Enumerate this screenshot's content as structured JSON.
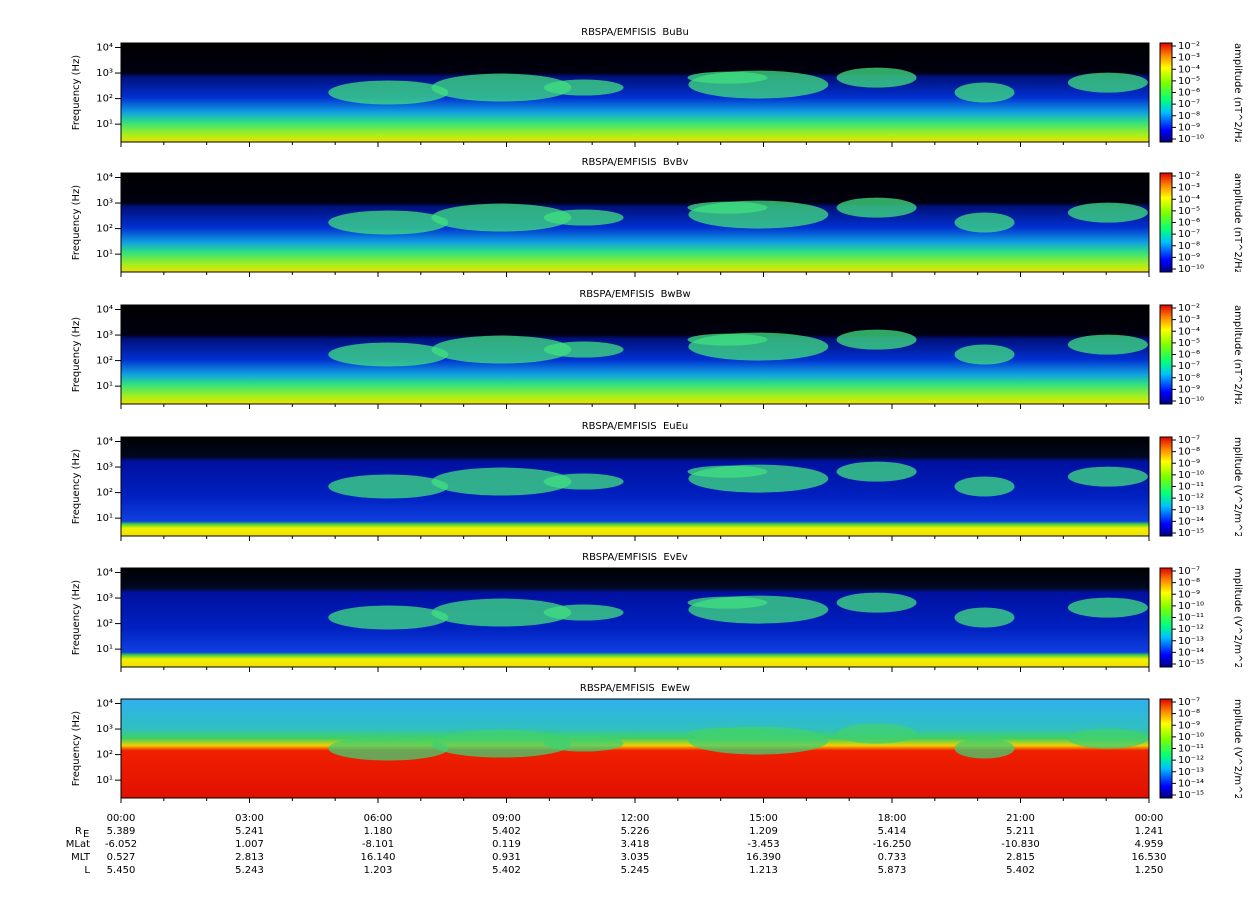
{
  "chart_data": [
    {
      "type": "spectrogram",
      "title": "RBSPA/EMFISIS  BuBu",
      "ylabel": "Frequency (Hz)",
      "log_y": true,
      "ylim": [
        2,
        15000
      ],
      "yticks": [
        {
          "value": 10,
          "label": "10¹"
        },
        {
          "value": 100,
          "label": "10²"
        },
        {
          "value": 1000,
          "label": "10³"
        },
        {
          "value": 10000,
          "label": "10⁴"
        }
      ],
      "clim": [
        1e-10,
        0.01
      ],
      "cticks": [
        {
          "value": 1e-10,
          "label": "10⁻¹⁰"
        },
        {
          "value": 1e-09,
          "label": "10⁻⁹"
        },
        {
          "value": 1e-08,
          "label": "10⁻⁸"
        },
        {
          "value": 1e-07,
          "label": "10⁻⁷"
        },
        {
          "value": 1e-06,
          "label": "10⁻⁶"
        },
        {
          "value": 1e-05,
          "label": "10⁻⁵"
        },
        {
          "value": 0.0001,
          "label": "10⁻⁴"
        },
        {
          "value": 0.001,
          "label": "10⁻³"
        },
        {
          "value": 0.01,
          "label": "10⁻²"
        }
      ],
      "colorbar_label": "amplitude (nT^2/Hz)"
    },
    {
      "type": "spectrogram",
      "title": "RBSPA/EMFISIS  BvBv",
      "ylabel": "Frequency (Hz)",
      "log_y": true,
      "ylim": [
        2,
        15000
      ],
      "yticks": [
        {
          "value": 10,
          "label": "10¹"
        },
        {
          "value": 100,
          "label": "10²"
        },
        {
          "value": 1000,
          "label": "10³"
        },
        {
          "value": 10000,
          "label": "10⁴"
        }
      ],
      "clim": [
        1e-10,
        0.01
      ],
      "cticks": [
        {
          "value": 1e-10,
          "label": "10⁻¹⁰"
        },
        {
          "value": 1e-09,
          "label": "10⁻⁹"
        },
        {
          "value": 1e-08,
          "label": "10⁻⁸"
        },
        {
          "value": 1e-07,
          "label": "10⁻⁷"
        },
        {
          "value": 1e-06,
          "label": "10⁻⁶"
        },
        {
          "value": 1e-05,
          "label": "10⁻⁵"
        },
        {
          "value": 0.0001,
          "label": "10⁻⁴"
        },
        {
          "value": 0.001,
          "label": "10⁻³"
        },
        {
          "value": 0.01,
          "label": "10⁻²"
        }
      ],
      "colorbar_label": "amplitude (nT^2/Hz)"
    },
    {
      "type": "spectrogram",
      "title": "RBSPA/EMFISIS  BwBw",
      "ylabel": "Frequency (Hz)",
      "log_y": true,
      "ylim": [
        2,
        15000
      ],
      "yticks": [
        {
          "value": 10,
          "label": "10¹"
        },
        {
          "value": 100,
          "label": "10²"
        },
        {
          "value": 1000,
          "label": "10³"
        },
        {
          "value": 10000,
          "label": "10⁴"
        }
      ],
      "clim": [
        1e-10,
        0.01
      ],
      "cticks": [
        {
          "value": 1e-10,
          "label": "10⁻¹⁰"
        },
        {
          "value": 1e-09,
          "label": "10⁻⁹"
        },
        {
          "value": 1e-08,
          "label": "10⁻⁸"
        },
        {
          "value": 1e-07,
          "label": "10⁻⁷"
        },
        {
          "value": 1e-06,
          "label": "10⁻⁶"
        },
        {
          "value": 1e-05,
          "label": "10⁻⁵"
        },
        {
          "value": 0.0001,
          "label": "10⁻⁴"
        },
        {
          "value": 0.001,
          "label": "10⁻³"
        },
        {
          "value": 0.01,
          "label": "10⁻²"
        }
      ],
      "colorbar_label": "amplitude (nT^2/Hz)"
    },
    {
      "type": "spectrogram",
      "title": "RBSPA/EMFISIS  EuEu",
      "ylabel": "Frequency (Hz)",
      "log_y": true,
      "ylim": [
        2,
        15000
      ],
      "yticks": [
        {
          "value": 10,
          "label": "10¹"
        },
        {
          "value": 100,
          "label": "10²"
        },
        {
          "value": 1000,
          "label": "10³"
        },
        {
          "value": 10000,
          "label": "10⁴"
        }
      ],
      "clim": [
        1e-15,
        1e-07
      ],
      "cticks": [
        {
          "value": 1e-15,
          "label": "10⁻¹⁵"
        },
        {
          "value": 1e-14,
          "label": "10⁻¹⁴"
        },
        {
          "value": 1e-13,
          "label": "10⁻¹³"
        },
        {
          "value": 1e-12,
          "label": "10⁻¹²"
        },
        {
          "value": 1e-11,
          "label": "10⁻¹¹"
        },
        {
          "value": 1e-10,
          "label": "10⁻¹⁰"
        },
        {
          "value": 1e-09,
          "label": "10⁻⁹"
        },
        {
          "value": 1e-08,
          "label": "10⁻⁸"
        },
        {
          "value": 1e-07,
          "label": "10⁻⁷"
        }
      ],
      "colorbar_label": "mplitude (V^2/m^2/Hz"
    },
    {
      "type": "spectrogram",
      "title": "RBSPA/EMFISIS  EvEv",
      "ylabel": "Frequency (Hz)",
      "log_y": true,
      "ylim": [
        2,
        15000
      ],
      "yticks": [
        {
          "value": 10,
          "label": "10¹"
        },
        {
          "value": 100,
          "label": "10²"
        },
        {
          "value": 1000,
          "label": "10³"
        },
        {
          "value": 10000,
          "label": "10⁴"
        }
      ],
      "clim": [
        1e-15,
        1e-07
      ],
      "cticks": [
        {
          "value": 1e-15,
          "label": "10⁻¹⁵"
        },
        {
          "value": 1e-14,
          "label": "10⁻¹⁴"
        },
        {
          "value": 1e-13,
          "label": "10⁻¹³"
        },
        {
          "value": 1e-12,
          "label": "10⁻¹²"
        },
        {
          "value": 1e-11,
          "label": "10⁻¹¹"
        },
        {
          "value": 1e-10,
          "label": "10⁻¹⁰"
        },
        {
          "value": 1e-09,
          "label": "10⁻⁹"
        },
        {
          "value": 1e-08,
          "label": "10⁻⁸"
        },
        {
          "value": 1e-07,
          "label": "10⁻⁷"
        }
      ],
      "colorbar_label": "mplitude (V^2/m^2/Hz"
    },
    {
      "type": "spectrogram",
      "title": "RBSPA/EMFISIS  EwEw",
      "ylabel": "Frequency (Hz)",
      "log_y": true,
      "ylim": [
        2,
        15000
      ],
      "yticks": [
        {
          "value": 10,
          "label": "10¹"
        },
        {
          "value": 100,
          "label": "10²"
        },
        {
          "value": 1000,
          "label": "10³"
        },
        {
          "value": 10000,
          "label": "10⁴"
        }
      ],
      "clim": [
        1e-15,
        1e-07
      ],
      "cticks": [
        {
          "value": 1e-15,
          "label": "10⁻¹⁵"
        },
        {
          "value": 1e-14,
          "label": "10⁻¹⁴"
        },
        {
          "value": 1e-13,
          "label": "10⁻¹³"
        },
        {
          "value": 1e-12,
          "label": "10⁻¹²"
        },
        {
          "value": 1e-11,
          "label": "10⁻¹¹"
        },
        {
          "value": 1e-10,
          "label": "10⁻¹⁰"
        },
        {
          "value": 1e-09,
          "label": "10⁻⁹"
        },
        {
          "value": 1e-08,
          "label": "10⁻⁸"
        },
        {
          "value": 1e-07,
          "label": "10⁻⁷"
        }
      ],
      "colorbar_label": "mplitude (V^2/m^2/Hz"
    }
  ],
  "time_axis": {
    "ticks": [
      "00:00",
      "03:00",
      "06:00",
      "09:00",
      "12:00",
      "15:00",
      "18:00",
      "21:00",
      "00:00"
    ]
  },
  "ephemeris": {
    "rows": [
      {
        "label": "R",
        "subscript": "E",
        "values": [
          "5.389",
          "5.241",
          "1.180",
          "5.402",
          "5.226",
          "1.209",
          "5.414",
          "5.211",
          "1.241"
        ]
      },
      {
        "label": "MLat",
        "values": [
          "-6.052",
          "1.007",
          "-8.101",
          "0.119",
          "3.418",
          "-3.453",
          "-16.250",
          "-10.830",
          "4.959"
        ]
      },
      {
        "label": "MLT",
        "values": [
          "0.527",
          "2.813",
          "16.140",
          "0.931",
          "3.035",
          "16.390",
          "0.733",
          "2.815",
          "16.530"
        ]
      },
      {
        "label": "L",
        "values": [
          "5.450",
          "5.243",
          "1.203",
          "5.402",
          "5.245",
          "1.213",
          "5.873",
          "5.402",
          "1.250"
        ]
      }
    ]
  }
}
